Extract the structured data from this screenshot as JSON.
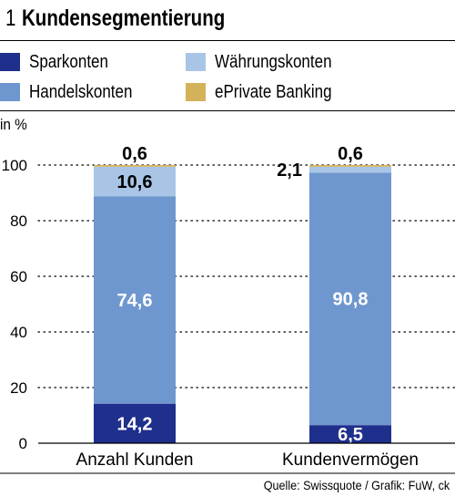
{
  "header": {
    "number": "1",
    "title": "Kundensegmentierung"
  },
  "legend": [
    {
      "label": "Sparkonten",
      "color": "#1f2f8c"
    },
    {
      "label": "Währungskonten",
      "color": "#a9c5e6"
    },
    {
      "label": "Handelskonten",
      "color": "#6f97cf"
    },
    {
      "label": "ePrivate Banking",
      "color": "#d4b25a"
    }
  ],
  "unit": "in %",
  "source": "Quelle: Swissquote / Grafik: FuW, ck",
  "chart_data": {
    "type": "bar",
    "stacked": true,
    "categories": [
      "Anzahl Kunden",
      "Kundenvermögen"
    ],
    "series": [
      {
        "name": "Sparkonten",
        "values": [
          14.2,
          6.5
        ],
        "labels": [
          "14,2",
          "6,5"
        ],
        "color": "#1f2f8c"
      },
      {
        "name": "Handelskonten",
        "values": [
          74.6,
          90.8
        ],
        "labels": [
          "74,6",
          "90,8"
        ],
        "color": "#6f97cf"
      },
      {
        "name": "Währungskonten",
        "values": [
          10.6,
          2.1
        ],
        "labels": [
          "10,6",
          "2,1"
        ],
        "color": "#a9c5e6"
      },
      {
        "name": "ePrivate Banking",
        "values": [
          0.6,
          0.6
        ],
        "labels": [
          "0,6",
          "0,6"
        ],
        "color": "#d4b25a"
      }
    ],
    "ylim": [
      0,
      100
    ],
    "yticks": [
      "0",
      "20",
      "40",
      "60",
      "80",
      "100"
    ],
    "ytick_values": [
      0,
      20,
      40,
      60,
      80,
      100
    ],
    "grid": "dotted"
  }
}
